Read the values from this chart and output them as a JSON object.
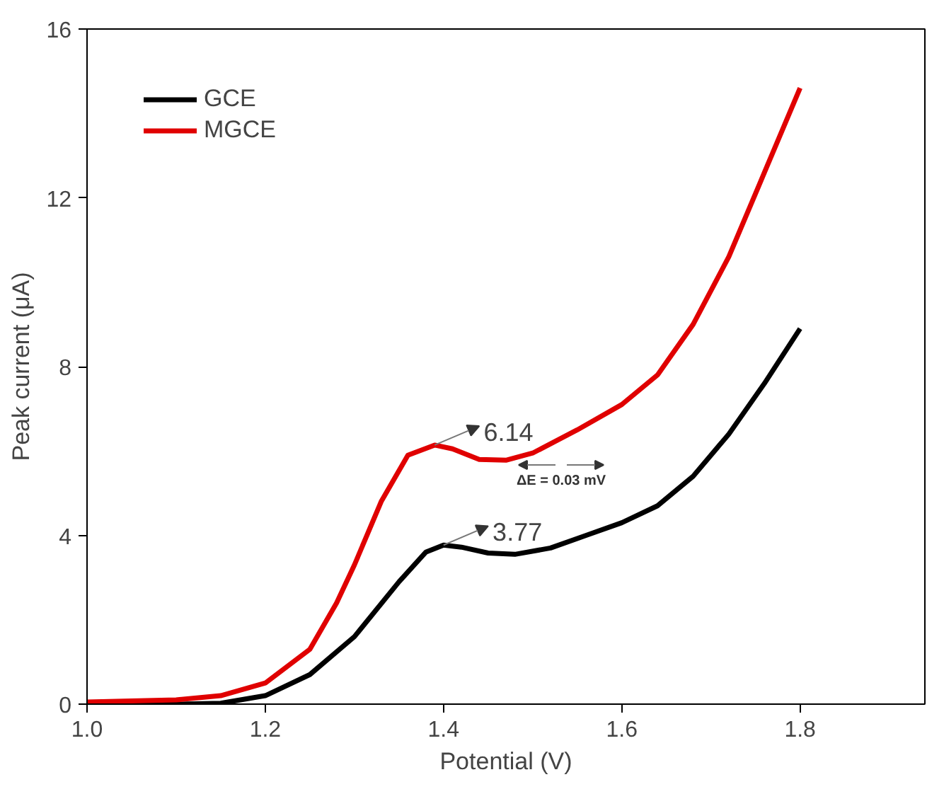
{
  "chart_data": {
    "type": "line",
    "xlabel": "Potential (V)",
    "ylabel": "Peak current (μA)",
    "xlim": [
      1.0,
      1.94
    ],
    "ylim": [
      0,
      16
    ],
    "xticks": [
      {
        "value": 1.0,
        "label": "1.0"
      },
      1.2,
      1.4,
      1.6,
      1.8
    ],
    "yticks": [
      0,
      4,
      8,
      12,
      16
    ],
    "legend": "top left",
    "grid": false,
    "line_style": "solid",
    "marker": "none",
    "series": [
      {
        "name": "GCE",
        "color": "#000000",
        "x": [
          1.0,
          1.1,
          1.15,
          1.2,
          1.25,
          1.3,
          1.35,
          1.38,
          1.4,
          1.42,
          1.45,
          1.48,
          1.52,
          1.56,
          1.6,
          1.64,
          1.68,
          1.72,
          1.76,
          1.8
        ],
        "values": [
          0.0,
          0.0,
          0.02,
          0.2,
          0.7,
          1.6,
          2.9,
          3.6,
          3.77,
          3.72,
          3.58,
          3.55,
          3.7,
          4.0,
          4.3,
          4.7,
          5.4,
          6.4,
          7.6,
          8.9
        ]
      },
      {
        "name": "MGCE",
        "color": "#e00000",
        "x": [
          1.0,
          1.1,
          1.15,
          1.2,
          1.25,
          1.28,
          1.3,
          1.33,
          1.36,
          1.39,
          1.41,
          1.44,
          1.47,
          1.5,
          1.55,
          1.6,
          1.64,
          1.68,
          1.72,
          1.76,
          1.8
        ],
        "values": [
          0.05,
          0.1,
          0.2,
          0.5,
          1.3,
          2.4,
          3.3,
          4.8,
          5.9,
          6.14,
          6.05,
          5.8,
          5.78,
          5.95,
          6.5,
          7.1,
          7.8,
          9.0,
          10.6,
          12.6,
          14.6
        ]
      }
    ],
    "annotations": [
      {
        "text": "6.14",
        "x": 1.39,
        "y": 6.14
      },
      {
        "text": "3.77",
        "x": 1.4,
        "y": 3.77
      },
      "ΔE = 0.03 mV"
    ]
  }
}
